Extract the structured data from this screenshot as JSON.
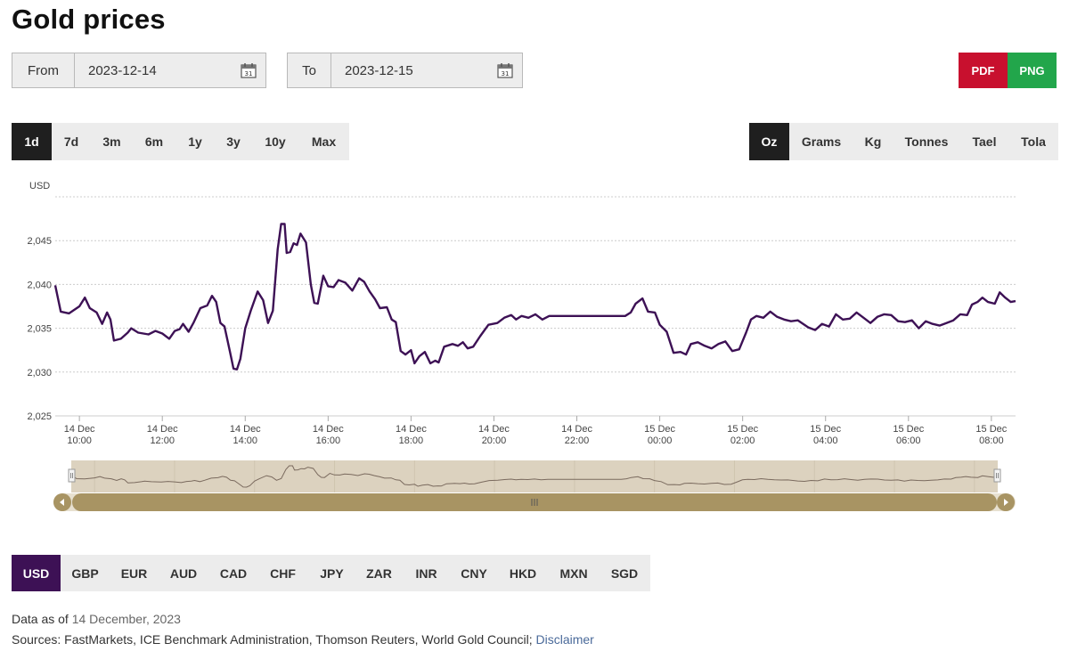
{
  "page": {
    "title": "Gold prices"
  },
  "date_range": {
    "from_label": "From",
    "from_value": "2023-12-14",
    "to_label": "To",
    "to_value": "2023-12-15"
  },
  "export": {
    "pdf_label": "PDF",
    "png_label": "PNG"
  },
  "time_ranges": {
    "selected": "1d",
    "items": [
      "1d",
      "7d",
      "3m",
      "6m",
      "1y",
      "3y",
      "10y",
      "Max"
    ]
  },
  "units": {
    "selected": "Oz",
    "items": [
      "Oz",
      "Grams",
      "Kg",
      "Tonnes",
      "Tael",
      "Tola"
    ]
  },
  "currencies": {
    "selected": "USD",
    "items": [
      "USD",
      "GBP",
      "EUR",
      "AUD",
      "CAD",
      "CHF",
      "JPY",
      "ZAR",
      "INR",
      "CNY",
      "HKD",
      "MXN",
      "SGD"
    ]
  },
  "footer": {
    "data_as_of_label": "Data as of",
    "data_as_of_value": "14 December, 2023",
    "sources_text": "Sources: FastMarkets, ICE Benchmark Administration, Thomson Reuters, World Gold Council;",
    "disclaimer_label": "Disclaimer"
  },
  "colors": {
    "line": "#3d1155",
    "navigator_bg": "#dcd2bf",
    "scrollbar": "#a89463",
    "grid": "#cccccc"
  },
  "icons": [
    "calendar-icon",
    "scroll-left-icon",
    "scroll-right-icon",
    "scroll-grip-icon",
    "navigator-handle-icon"
  ],
  "chart_data": {
    "type": "line",
    "ylabel": "USD",
    "ylim": [
      2025,
      2050
    ],
    "yticks": [
      2025,
      2030,
      2035,
      2040,
      2045
    ],
    "ytick_labels": [
      "2,025",
      "2,030",
      "2,035",
      "2,040",
      "2,045"
    ],
    "xlim": [
      "2023-12-14T09:25",
      "2023-12-15T08:35"
    ],
    "xticks": [
      {
        "t": "2023-12-14T10:00",
        "line1": "14 Dec",
        "line2": "10:00"
      },
      {
        "t": "2023-12-14T12:00",
        "line1": "14 Dec",
        "line2": "12:00"
      },
      {
        "t": "2023-12-14T14:00",
        "line1": "14 Dec",
        "line2": "14:00"
      },
      {
        "t": "2023-12-14T16:00",
        "line1": "14 Dec",
        "line2": "16:00"
      },
      {
        "t": "2023-12-14T18:00",
        "line1": "14 Dec",
        "line2": "18:00"
      },
      {
        "t": "2023-12-14T20:00",
        "line1": "14 Dec",
        "line2": "20:00"
      },
      {
        "t": "2023-12-14T22:00",
        "line1": "14 Dec",
        "line2": "22:00"
      },
      {
        "t": "2023-12-15T00:00",
        "line1": "15 Dec",
        "line2": "00:00"
      },
      {
        "t": "2023-12-15T02:00",
        "line1": "15 Dec",
        "line2": "02:00"
      },
      {
        "t": "2023-12-15T04:00",
        "line1": "15 Dec",
        "line2": "04:00"
      },
      {
        "t": "2023-12-15T06:00",
        "line1": "15 Dec",
        "line2": "06:00"
      },
      {
        "t": "2023-12-15T08:00",
        "line1": "15 Dec",
        "line2": "08:00"
      }
    ],
    "series": [
      {
        "points": [
          [
            "2023-12-14T09:25",
            2039.9
          ],
          [
            "2023-12-14T09:33",
            2036.9
          ],
          [
            "2023-12-14T09:45",
            2036.7
          ],
          [
            "2023-12-14T10:00",
            2037.5
          ],
          [
            "2023-12-14T10:08",
            2038.5
          ],
          [
            "2023-12-14T10:15",
            2037.3
          ],
          [
            "2023-12-14T10:25",
            2036.8
          ],
          [
            "2023-12-14T10:33",
            2035.5
          ],
          [
            "2023-12-14T10:40",
            2036.8
          ],
          [
            "2023-12-14T10:45",
            2036.0
          ],
          [
            "2023-12-14T10:50",
            2033.6
          ],
          [
            "2023-12-14T11:00",
            2033.8
          ],
          [
            "2023-12-14T11:10",
            2034.5
          ],
          [
            "2023-12-14T11:15",
            2035.0
          ],
          [
            "2023-12-14T11:25",
            2034.5
          ],
          [
            "2023-12-14T11:40",
            2034.3
          ],
          [
            "2023-12-14T11:50",
            2034.7
          ],
          [
            "2023-12-14T12:00",
            2034.4
          ],
          [
            "2023-12-14T12:10",
            2033.8
          ],
          [
            "2023-12-14T12:18",
            2034.7
          ],
          [
            "2023-12-14T12:25",
            2034.9
          ],
          [
            "2023-12-14T12:30",
            2035.5
          ],
          [
            "2023-12-14T12:38",
            2034.6
          ],
          [
            "2023-12-14T12:45",
            2035.6
          ],
          [
            "2023-12-14T12:55",
            2037.3
          ],
          [
            "2023-12-14T13:05",
            2037.6
          ],
          [
            "2023-12-14T13:12",
            2038.7
          ],
          [
            "2023-12-14T13:18",
            2038.0
          ],
          [
            "2023-12-14T13:24",
            2035.6
          ],
          [
            "2023-12-14T13:30",
            2035.2
          ],
          [
            "2023-12-14T13:38",
            2032.3
          ],
          [
            "2023-12-14T13:43",
            2030.4
          ],
          [
            "2023-12-14T13:48",
            2030.3
          ],
          [
            "2023-12-14T13:53",
            2031.5
          ],
          [
            "2023-12-14T14:00",
            2035.0
          ],
          [
            "2023-12-14T14:08",
            2037.0
          ],
          [
            "2023-12-14T14:18",
            2039.2
          ],
          [
            "2023-12-14T14:26",
            2038.2
          ],
          [
            "2023-12-14T14:33",
            2035.6
          ],
          [
            "2023-12-14T14:40",
            2037.0
          ],
          [
            "2023-12-14T14:47",
            2044.0
          ],
          [
            "2023-12-14T14:52",
            2046.9
          ],
          [
            "2023-12-14T14:57",
            2046.9
          ],
          [
            "2023-12-14T15:00",
            2043.6
          ],
          [
            "2023-12-14T15:05",
            2043.7
          ],
          [
            "2023-12-14T15:10",
            2044.7
          ],
          [
            "2023-12-14T15:15",
            2044.5
          ],
          [
            "2023-12-14T15:20",
            2045.8
          ],
          [
            "2023-12-14T15:28",
            2044.8
          ],
          [
            "2023-12-14T15:35",
            2040.0
          ],
          [
            "2023-12-14T15:40",
            2037.9
          ],
          [
            "2023-12-14T15:45",
            2037.8
          ],
          [
            "2023-12-14T15:53",
            2041.0
          ],
          [
            "2023-12-14T16:00",
            2039.8
          ],
          [
            "2023-12-14T16:08",
            2039.7
          ],
          [
            "2023-12-14T16:15",
            2040.5
          ],
          [
            "2023-12-14T16:25",
            2040.2
          ],
          [
            "2023-12-14T16:35",
            2039.3
          ],
          [
            "2023-12-14T16:45",
            2040.7
          ],
          [
            "2023-12-14T16:52",
            2040.3
          ],
          [
            "2023-12-14T17:00",
            2039.2
          ],
          [
            "2023-12-14T17:08",
            2038.3
          ],
          [
            "2023-12-14T17:15",
            2037.3
          ],
          [
            "2023-12-14T17:25",
            2037.4
          ],
          [
            "2023-12-14T17:32",
            2036.0
          ],
          [
            "2023-12-14T17:38",
            2035.7
          ],
          [
            "2023-12-14T17:45",
            2032.4
          ],
          [
            "2023-12-14T17:52",
            2032.0
          ],
          [
            "2023-12-14T18:00",
            2032.5
          ],
          [
            "2023-12-14T18:05",
            2031.0
          ],
          [
            "2023-12-14T18:12",
            2031.8
          ],
          [
            "2023-12-14T18:20",
            2032.3
          ],
          [
            "2023-12-14T18:28",
            2031.0
          ],
          [
            "2023-12-14T18:35",
            2031.3
          ],
          [
            "2023-12-14T18:40",
            2031.1
          ],
          [
            "2023-12-14T18:48",
            2032.9
          ],
          [
            "2023-12-14T19:00",
            2033.2
          ],
          [
            "2023-12-14T19:08",
            2033.0
          ],
          [
            "2023-12-14T19:15",
            2033.4
          ],
          [
            "2023-12-14T19:22",
            2032.7
          ],
          [
            "2023-12-14T19:30",
            2032.9
          ],
          [
            "2023-12-14T19:40",
            2034.1
          ],
          [
            "2023-12-14T19:52",
            2035.4
          ],
          [
            "2023-12-14T20:05",
            2035.6
          ],
          [
            "2023-12-14T20:15",
            2036.2
          ],
          [
            "2023-12-14T20:25",
            2036.5
          ],
          [
            "2023-12-14T20:32",
            2036.0
          ],
          [
            "2023-12-14T20:40",
            2036.4
          ],
          [
            "2023-12-14T20:50",
            2036.2
          ],
          [
            "2023-12-14T21:00",
            2036.6
          ],
          [
            "2023-12-14T21:10",
            2036.0
          ],
          [
            "2023-12-14T21:20",
            2036.4
          ],
          [
            "2023-12-14T21:30",
            2036.4
          ],
          [
            "2023-12-14T23:10",
            2036.4
          ],
          [
            "2023-12-14T23:18",
            2036.8
          ],
          [
            "2023-12-14T23:25",
            2037.8
          ],
          [
            "2023-12-14T23:35",
            2038.4
          ],
          [
            "2023-12-14T23:43",
            2036.9
          ],
          [
            "2023-12-14T23:53",
            2036.8
          ],
          [
            "2023-12-15T00:00",
            2035.4
          ],
          [
            "2023-12-15T00:10",
            2034.6
          ],
          [
            "2023-12-15T00:20",
            2032.2
          ],
          [
            "2023-12-15T00:30",
            2032.3
          ],
          [
            "2023-12-15T00:38",
            2032.0
          ],
          [
            "2023-12-15T00:45",
            2033.2
          ],
          [
            "2023-12-15T00:55",
            2033.4
          ],
          [
            "2023-12-15T01:05",
            2033.0
          ],
          [
            "2023-12-15T01:15",
            2032.7
          ],
          [
            "2023-12-15T01:25",
            2033.2
          ],
          [
            "2023-12-15T01:35",
            2033.5
          ],
          [
            "2023-12-15T01:45",
            2032.4
          ],
          [
            "2023-12-15T01:55",
            2032.6
          ],
          [
            "2023-12-15T02:05",
            2034.5
          ],
          [
            "2023-12-15T02:12",
            2036.0
          ],
          [
            "2023-12-15T02:20",
            2036.4
          ],
          [
            "2023-12-15T02:30",
            2036.2
          ],
          [
            "2023-12-15T02:40",
            2036.9
          ],
          [
            "2023-12-15T02:50",
            2036.3
          ],
          [
            "2023-12-15T03:00",
            2036.0
          ],
          [
            "2023-12-15T03:10",
            2035.8
          ],
          [
            "2023-12-15T03:20",
            2035.9
          ],
          [
            "2023-12-15T03:35",
            2035.1
          ],
          [
            "2023-12-15T03:45",
            2034.8
          ],
          [
            "2023-12-15T03:55",
            2035.5
          ],
          [
            "2023-12-15T04:05",
            2035.2
          ],
          [
            "2023-12-15T04:15",
            2036.6
          ],
          [
            "2023-12-15T04:25",
            2036.0
          ],
          [
            "2023-12-15T04:35",
            2036.1
          ],
          [
            "2023-12-15T04:45",
            2036.8
          ],
          [
            "2023-12-15T04:55",
            2036.2
          ],
          [
            "2023-12-15T05:05",
            2035.6
          ],
          [
            "2023-12-15T05:15",
            2036.3
          ],
          [
            "2023-12-15T05:25",
            2036.6
          ],
          [
            "2023-12-15T05:35",
            2036.5
          ],
          [
            "2023-12-15T05:45",
            2035.8
          ],
          [
            "2023-12-15T05:55",
            2035.7
          ],
          [
            "2023-12-15T06:05",
            2035.9
          ],
          [
            "2023-12-15T06:15",
            2035.0
          ],
          [
            "2023-12-15T06:25",
            2035.8
          ],
          [
            "2023-12-15T06:35",
            2035.5
          ],
          [
            "2023-12-15T06:45",
            2035.3
          ],
          [
            "2023-12-15T06:55",
            2035.6
          ],
          [
            "2023-12-15T07:05",
            2035.9
          ],
          [
            "2023-12-15T07:15",
            2036.6
          ],
          [
            "2023-12-15T07:25",
            2036.5
          ],
          [
            "2023-12-15T07:32",
            2037.7
          ],
          [
            "2023-12-15T07:40",
            2038.0
          ],
          [
            "2023-12-15T07:47",
            2038.5
          ],
          [
            "2023-12-15T07:55",
            2038.0
          ],
          [
            "2023-12-15T08:05",
            2037.8
          ],
          [
            "2023-12-15T08:12",
            2039.1
          ],
          [
            "2023-12-15T08:20",
            2038.5
          ],
          [
            "2023-12-15T08:28",
            2038.0
          ],
          [
            "2023-12-15T08:35",
            2038.1
          ]
        ]
      }
    ],
    "grid": true,
    "legend": "none"
  }
}
